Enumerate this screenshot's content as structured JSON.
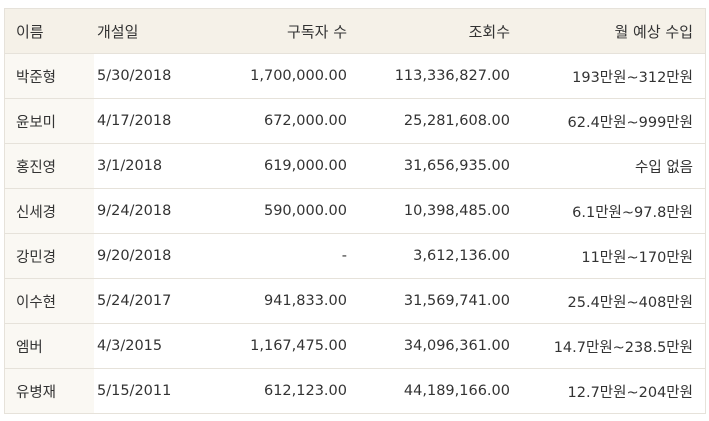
{
  "columns": {
    "name": "이름",
    "opened": "개설일",
    "subscribers": "구독자 수",
    "views": "조회수",
    "income": "월 예상 수입"
  },
  "rows": [
    {
      "name": "박준형",
      "opened": "5/30/2018",
      "subscribers": "1,700,000.00",
      "views": "113,336,827.00",
      "income": "193만원~312만원"
    },
    {
      "name": "윤보미",
      "opened": "4/17/2018",
      "subscribers": "672,000.00",
      "views": "25,281,608.00",
      "income": "62.4만원~999만원"
    },
    {
      "name": "홍진영",
      "opened": "3/1/2018",
      "subscribers": "619,000.00",
      "views": "31,656,935.00",
      "income": "수입 없음"
    },
    {
      "name": "신세경",
      "opened": "9/24/2018",
      "subscribers": "590,000.00",
      "views": "10,398,485.00",
      "income": "6.1만원~97.8만원"
    },
    {
      "name": "강민경",
      "opened": "9/20/2018",
      "subscribers": "-",
      "views": "3,612,136.00",
      "income": "11만원~170만원"
    },
    {
      "name": "이수현",
      "opened": "5/24/2017",
      "subscribers": "941,833.00",
      "views": "31,569,741.00",
      "income": "25.4만원~408만원"
    },
    {
      "name": "엠버",
      "opened": "4/3/2015",
      "subscribers": "1,167,475.00",
      "views": "34,096,361.00",
      "income": "14.7만원~238.5만원"
    },
    {
      "name": "유병재",
      "opened": "5/15/2011",
      "subscribers": "612,123.00",
      "views": "44,189,166.00",
      "income": "12.7만원~204만원"
    }
  ]
}
